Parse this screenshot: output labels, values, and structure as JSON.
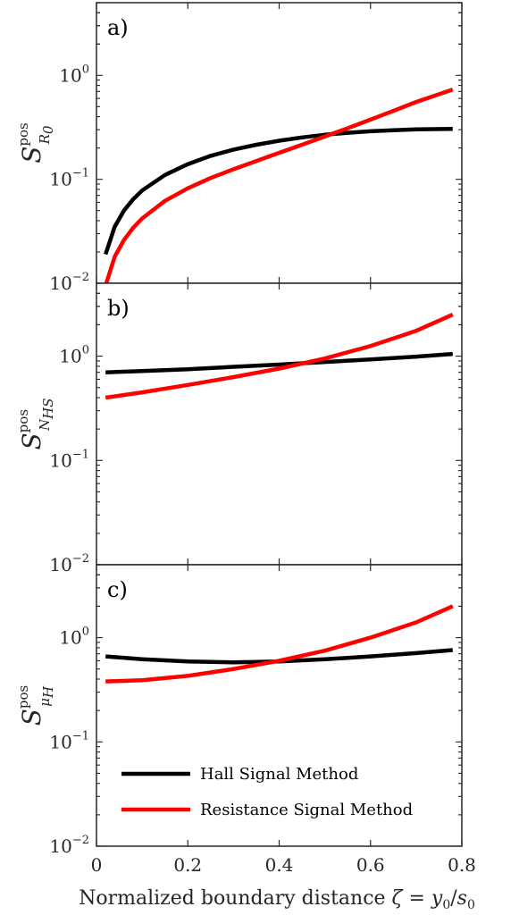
{
  "chart_data": [
    {
      "type": "line",
      "panel_label": "a)",
      "ylabel": {
        "base": "S",
        "sup": "pos",
        "sub": "R",
        "sub2": "0"
      },
      "yscale": "log",
      "ylim": [
        0.01,
        5
      ],
      "xlim": [
        0,
        0.8
      ],
      "x_ticks": [
        0,
        0.2,
        0.4,
        0.6,
        0.8
      ],
      "y_ticks": [
        {
          "value": 0.01,
          "base": "10",
          "exp": "−2"
        },
        {
          "value": 0.1,
          "base": "10",
          "exp": "−1"
        },
        {
          "value": 1,
          "base": "10",
          "exp": "0"
        }
      ],
      "series": [
        {
          "name": "Hall Signal Method",
          "color": "#000000",
          "x": [
            0.02,
            0.04,
            0.06,
            0.08,
            0.1,
            0.15,
            0.2,
            0.25,
            0.3,
            0.35,
            0.4,
            0.45,
            0.5,
            0.55,
            0.6,
            0.65,
            0.7,
            0.78
          ],
          "y": [
            0.019,
            0.035,
            0.05,
            0.064,
            0.078,
            0.11,
            0.14,
            0.168,
            0.193,
            0.215,
            0.235,
            0.253,
            0.268,
            0.28,
            0.29,
            0.297,
            0.302,
            0.306
          ]
        },
        {
          "name": "Resistance Signal Method",
          "color": "#ff0000",
          "x": [
            0.02,
            0.04,
            0.06,
            0.08,
            0.1,
            0.15,
            0.2,
            0.25,
            0.3,
            0.35,
            0.4,
            0.45,
            0.5,
            0.55,
            0.6,
            0.65,
            0.7,
            0.78
          ],
          "y": [
            0.0095,
            0.018,
            0.026,
            0.034,
            0.042,
            0.062,
            0.082,
            0.103,
            0.125,
            0.15,
            0.18,
            0.215,
            0.258,
            0.31,
            0.375,
            0.455,
            0.555,
            0.73
          ]
        }
      ]
    },
    {
      "type": "line",
      "panel_label": "b)",
      "ylabel": {
        "base": "S",
        "sup": "pos",
        "sub": "N",
        "sub2": "HS"
      },
      "yscale": "log",
      "ylim": [
        0.01,
        5
      ],
      "xlim": [
        0,
        0.8
      ],
      "x_ticks": [
        0,
        0.2,
        0.4,
        0.6,
        0.8
      ],
      "y_ticks": [
        {
          "value": 0.01,
          "base": "10",
          "exp": "−2"
        },
        {
          "value": 0.1,
          "base": "10",
          "exp": "−1"
        },
        {
          "value": 1,
          "base": "10",
          "exp": "0"
        }
      ],
      "series": [
        {
          "name": "Hall Signal Method",
          "color": "#000000",
          "x": [
            0.02,
            0.1,
            0.2,
            0.3,
            0.4,
            0.5,
            0.6,
            0.7,
            0.78
          ],
          "y": [
            0.7,
            0.72,
            0.75,
            0.79,
            0.83,
            0.88,
            0.93,
            0.99,
            1.05
          ]
        },
        {
          "name": "Resistance Signal Method",
          "color": "#ff0000",
          "x": [
            0.02,
            0.1,
            0.2,
            0.3,
            0.4,
            0.5,
            0.6,
            0.7,
            0.78
          ],
          "y": [
            0.4,
            0.45,
            0.53,
            0.63,
            0.76,
            0.95,
            1.25,
            1.75,
            2.5
          ]
        }
      ]
    },
    {
      "type": "line",
      "panel_label": "c)",
      "ylabel": {
        "base": "S",
        "sup": "pos",
        "sub": "μ",
        "sub2": "H"
      },
      "yscale": "log",
      "ylim": [
        0.01,
        5
      ],
      "xlim": [
        0,
        0.8
      ],
      "x_ticks": [
        0,
        0.2,
        0.4,
        0.6,
        0.8
      ],
      "y_ticks": [
        {
          "value": 0.01,
          "base": "10",
          "exp": "−2"
        },
        {
          "value": 0.1,
          "base": "10",
          "exp": "−1"
        },
        {
          "value": 1,
          "base": "10",
          "exp": "0"
        }
      ],
      "series": [
        {
          "name": "Hall Signal Method",
          "color": "#000000",
          "x": [
            0.02,
            0.1,
            0.2,
            0.3,
            0.4,
            0.5,
            0.6,
            0.7,
            0.78
          ],
          "y": [
            0.66,
            0.62,
            0.59,
            0.58,
            0.59,
            0.62,
            0.66,
            0.71,
            0.76
          ]
        },
        {
          "name": "Resistance Signal Method",
          "color": "#ff0000",
          "x": [
            0.02,
            0.1,
            0.2,
            0.3,
            0.4,
            0.5,
            0.6,
            0.7,
            0.78
          ],
          "y": [
            0.38,
            0.39,
            0.43,
            0.5,
            0.6,
            0.75,
            1.0,
            1.4,
            2.0
          ]
        }
      ],
      "legend": {
        "placement": "bottom-left",
        "entries": [
          {
            "label": "Hall Signal Method",
            "color": "#000000"
          },
          {
            "label": "Resistance Signal Method",
            "color": "#ff0000"
          }
        ]
      }
    }
  ],
  "xlabel": {
    "text": "Normalized boundary distance ",
    "zeta": "ζ",
    "eq": " = ",
    "y": "y",
    "y_sub": "0",
    "slash": "/",
    "s": "s",
    "s_sub": "0"
  },
  "x_tick_labels": [
    "0",
    "0.2",
    "0.4",
    "0.6",
    "0.8"
  ]
}
